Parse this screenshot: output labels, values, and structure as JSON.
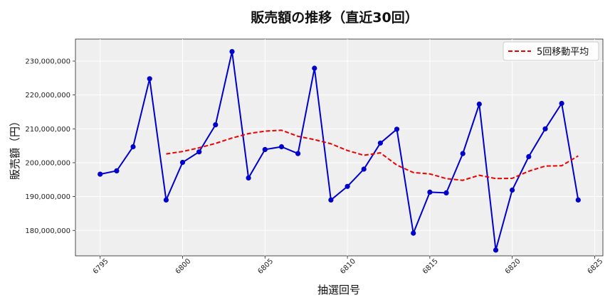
{
  "chart_data": {
    "type": "line",
    "title": "販売額の推移（直近30回）",
    "xlabel": "抽選回号",
    "ylabel": "販売額（円）",
    "xlim": [
      6793.5,
      6825.5
    ],
    "ylim": [
      172500000,
      236500000
    ],
    "xticks": [
      6795,
      6800,
      6805,
      6810,
      6815,
      6820,
      6825
    ],
    "xtick_labels": [
      "6795",
      "6800",
      "6805",
      "6810",
      "6815",
      "6820",
      "6825"
    ],
    "yticks": [
      180000000,
      190000000,
      200000000,
      210000000,
      220000000,
      230000000
    ],
    "ytick_labels": [
      "180,000,000",
      "190,000,000",
      "200,000,000",
      "210,000,000",
      "220,000,000",
      "230,000,000"
    ],
    "grid": true,
    "legend_position": "top-right",
    "x": [
      6795,
      6796,
      6797,
      6798,
      6799,
      6800,
      6801,
      6802,
      6803,
      6804,
      6805,
      6806,
      6807,
      6808,
      6809,
      6810,
      6811,
      6812,
      6813,
      6814,
      6815,
      6816,
      6817,
      6818,
      6819,
      6820,
      6821,
      6822,
      6823,
      6824
    ],
    "series": [
      {
        "values": [
          196600000,
          197600000,
          204700000,
          224800000,
          189000000,
          200100000,
          203200000,
          211200000,
          232800000,
          195500000,
          203900000,
          204700000,
          202700000,
          227900000,
          189000000,
          193000000,
          198100000,
          205800000,
          209900000,
          179200000,
          191300000,
          191100000,
          202700000,
          217300000,
          174200000,
          191900000,
          201800000,
          210000000,
          217500000,
          189000000
        ],
        "color": "#0000cc",
        "style": "solid",
        "marker": "circle"
      },
      {
        "name": "5回移動平均",
        "values": [
          null,
          null,
          null,
          null,
          202600000,
          203300000,
          204400000,
          205700000,
          207300000,
          208600000,
          209300000,
          209600000,
          207800000,
          206800000,
          205600000,
          203600000,
          202200000,
          202900000,
          199300000,
          197100000,
          196700000,
          195300000,
          194800000,
          196300000,
          195300000,
          195400000,
          197500000,
          199000000,
          199100000,
          202000000
        ],
        "color": "#ee0000",
        "style": "dashed",
        "marker": "none"
      }
    ]
  }
}
